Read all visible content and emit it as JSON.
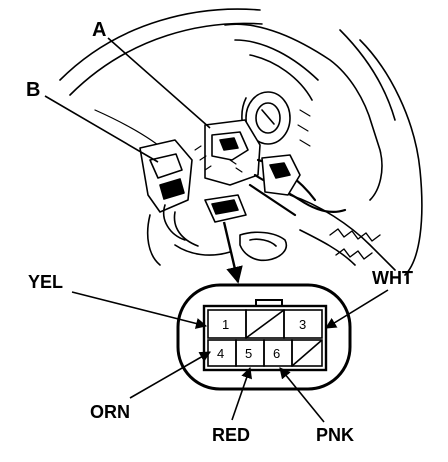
{
  "callouts": {
    "a": "A",
    "b": "B"
  },
  "connector": {
    "pins": {
      "p1": "1",
      "p3": "3",
      "p4": "4",
      "p5": "5",
      "p6": "6"
    },
    "wires": {
      "yel": "YEL",
      "wht": "WHT",
      "orn": "ORN",
      "red": "RED",
      "pnk": "PNK"
    }
  },
  "colors": {
    "ink": "#000000",
    "paper": "#ffffff"
  }
}
